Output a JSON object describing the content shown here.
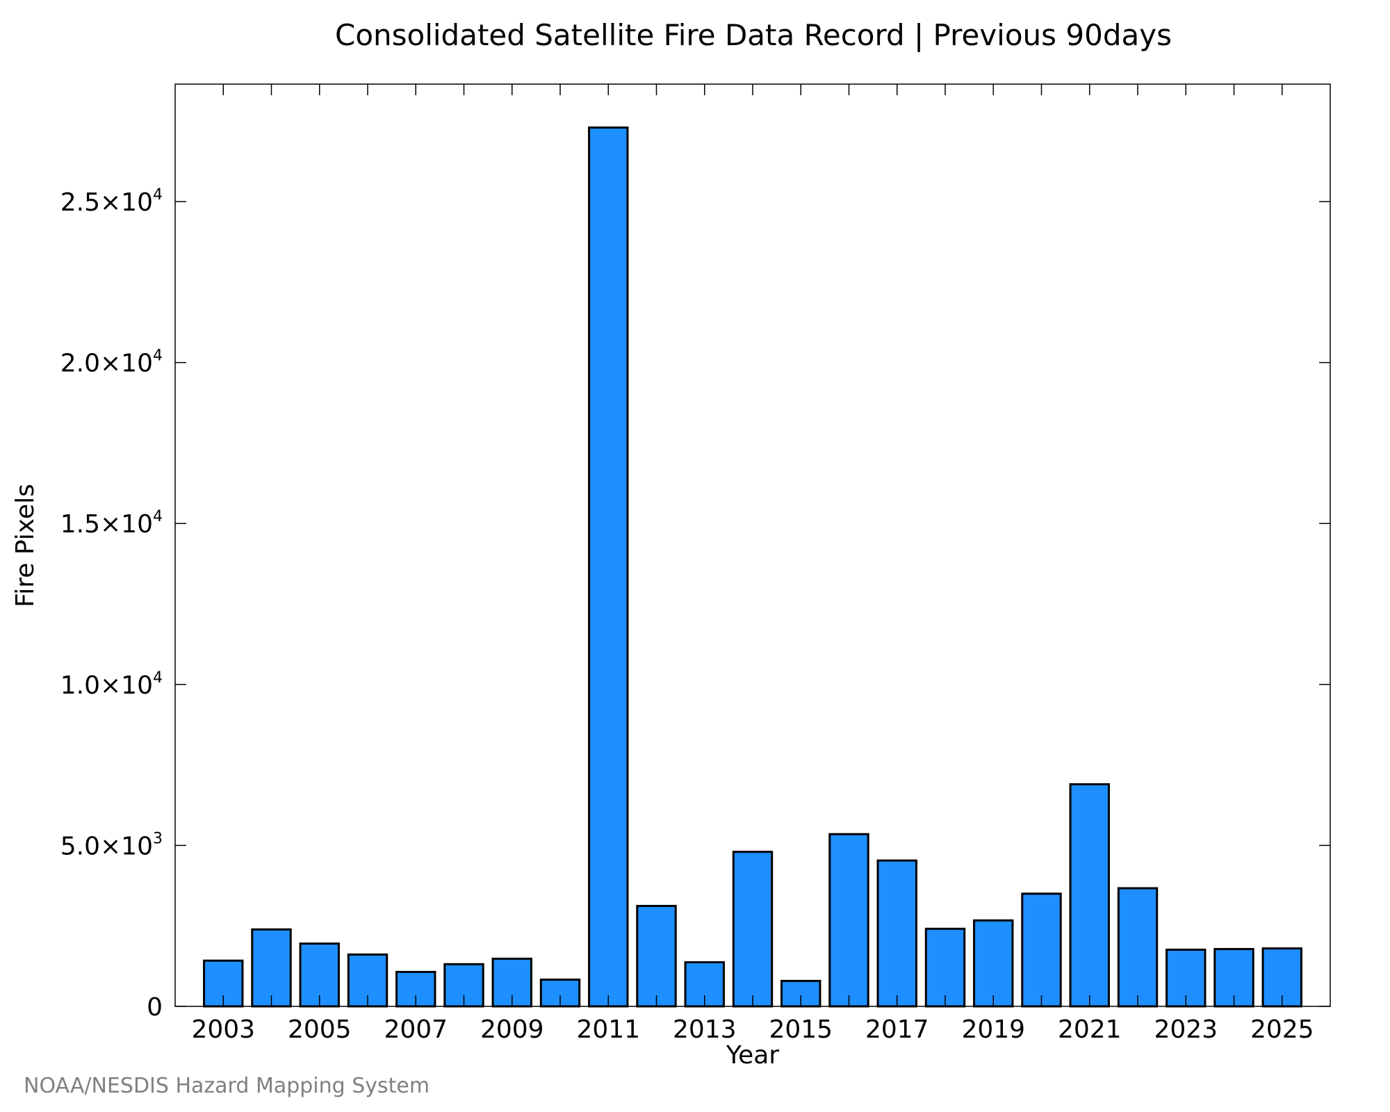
{
  "chart_data": {
    "type": "bar",
    "title": "Consolidated Satellite Fire Data Record | Previous 90days",
    "xlabel": "Year",
    "ylabel": "Fire Pixels",
    "categories": [
      "2003",
      "2004",
      "2005",
      "2006",
      "2007",
      "2008",
      "2009",
      "2010",
      "2011",
      "2012",
      "2013",
      "2014",
      "2015",
      "2016",
      "2017",
      "2018",
      "2019",
      "2020",
      "2021",
      "2022",
      "2023",
      "2024",
      "2025"
    ],
    "values": [
      1420,
      2390,
      1950,
      1610,
      1070,
      1310,
      1480,
      830,
      27300,
      3120,
      1370,
      4800,
      790,
      5350,
      4530,
      2410,
      2670,
      3500,
      6900,
      3670,
      1760,
      1780,
      1800
    ],
    "x_tick_labels": [
      "2003",
      "2005",
      "2007",
      "2009",
      "2011",
      "2013",
      "2015",
      "2017",
      "2019",
      "2021",
      "2023",
      "2025"
    ],
    "y_ticks": [
      {
        "value": 0,
        "mantissa": "0",
        "exponent": ""
      },
      {
        "value": 5000,
        "mantissa": "5.0×10",
        "exponent": "3"
      },
      {
        "value": 10000,
        "mantissa": "1.0×10",
        "exponent": "4"
      },
      {
        "value": 15000,
        "mantissa": "1.5×10",
        "exponent": "4"
      },
      {
        "value": 20000,
        "mantissa": "2.0×10",
        "exponent": "4"
      },
      {
        "value": 25000,
        "mantissa": "2.5×10",
        "exponent": "4"
      }
    ],
    "ylim": [
      0,
      28650
    ],
    "xlim": [
      2002.0,
      2026.0
    ],
    "grid": false,
    "legend": "none",
    "colors": {
      "bar_fill": "#1E8FFF",
      "bar_edge": "#000000",
      "axis": "#000000"
    },
    "source_credit": "NOAA/NESDIS Hazard Mapping System"
  }
}
